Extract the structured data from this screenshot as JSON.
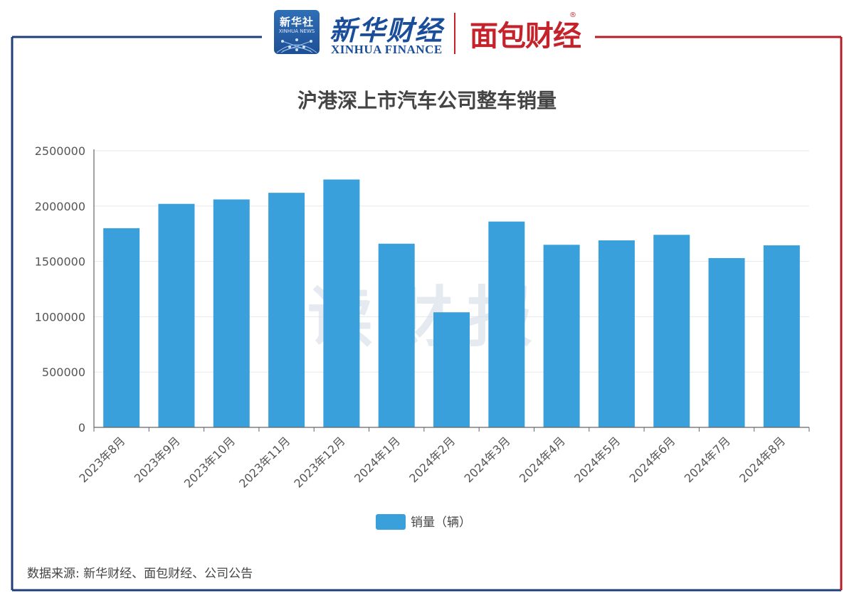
{
  "header": {
    "badge_cn": "新华社",
    "badge_en": "XINHUA NEWS",
    "brand_cn": "新华财经",
    "brand_en": "XINHUA FINANCE",
    "partner": "面包财经",
    "registered_mark": "®"
  },
  "watermark": "读财报",
  "footer": {
    "source": "数据来源: 新华财经、面包财经、公司公告"
  },
  "colors": {
    "bar": "#3aa0dc",
    "frame_left": "#1f3f7a",
    "frame_right": "#b3202a",
    "axis": "#666666",
    "grid": "#e6e8ee"
  },
  "chart_data": {
    "type": "bar",
    "title": "沪港深上市汽车公司整车销量",
    "categories": [
      "2023年8月",
      "2023年9月",
      "2023年10月",
      "2023年11月",
      "2023年12月",
      "2024年1月",
      "2024年2月",
      "2024年3月",
      "2024年4月",
      "2024年5月",
      "2024年6月",
      "2024年7月",
      "2024年8月"
    ],
    "series": [
      {
        "name": "销量（辆）",
        "values": [
          1800000,
          2020000,
          2060000,
          2120000,
          2240000,
          1660000,
          1040000,
          1860000,
          1650000,
          1690000,
          1740000,
          1530000,
          1645000
        ]
      }
    ],
    "yticks": [
      0,
      500000,
      1000000,
      1500000,
      2000000,
      2500000
    ],
    "ylim": [
      0,
      2500000
    ],
    "grid": true,
    "legend": "bottom-center"
  }
}
